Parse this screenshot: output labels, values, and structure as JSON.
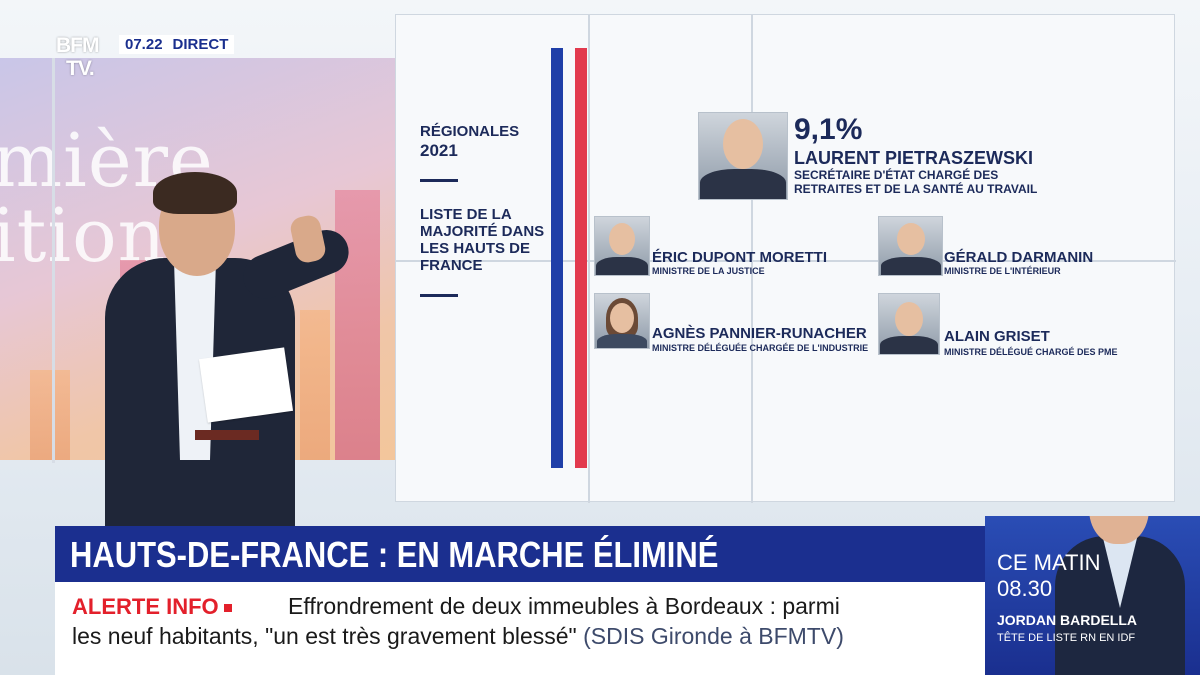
{
  "channel": {
    "logo_line1": "BFM",
    "logo_line2": "TV.",
    "time": "07.22",
    "live_label": "DIRECT"
  },
  "backdrop": {
    "word_top": "mière",
    "word_bottom": "ition"
  },
  "board": {
    "election_label": "RÉGIONALES",
    "election_year": "2021",
    "list_label": "LISTE DE LA MAJORITÉ DANS LES HAUTS DE FRANCE",
    "score": "9,1%",
    "lead": {
      "name": "LAURENT PIETRASZEWSKI",
      "role": "SECRÉTAIRE D'ÉTAT CHARGÉ DES RETRAITES ET DE LA SANTÉ AU TRAVAIL"
    },
    "people": [
      {
        "name": "ÉRIC DUPONT MORETTI",
        "role": "MINISTRE DE LA JUSTICE"
      },
      {
        "name": "GÉRALD DARMANIN",
        "role": "MINISTRE DE L'INTÉRIEUR"
      },
      {
        "name": "AGNÈS PANNIER-RUNACHER",
        "role": "MINISTRE DÉLÉGUÉE CHARGÉE DE L'INDUSTRIE"
      },
      {
        "name": "ALAIN GRISET",
        "role": "MINISTRE DÉLÉGUÉ CHARGÉ DES PME"
      }
    ]
  },
  "headline": "HAUTS-DE-FRANCE : EN MARCHE ÉLIMINÉ",
  "ticker": {
    "alert_label": "ALERTE INFO",
    "line1": "Effrondrement de deux immeubles à Bordeaux : parmi",
    "line2": "les neuf habitants, \"un est très gravement blessé\"",
    "source": "(SDIS Gironde à BFMTV)"
  },
  "promo": {
    "label": "CE MATIN",
    "time": "08.30",
    "guest_name": "JORDAN BARDELLA",
    "guest_role": "TÊTE DE LISTE RN EN IDF"
  },
  "colors": {
    "headline_bg": "#1b2f8f",
    "alert_red": "#e3202b",
    "board_navy": "#1c2a5a",
    "flag_blue": "#1f3fa8",
    "flag_red": "#e23a4e"
  }
}
